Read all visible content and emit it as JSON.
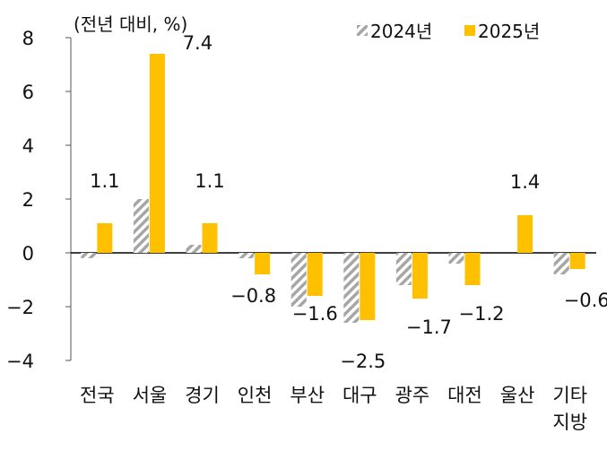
{
  "chart_data": {
    "type": "bar",
    "unit_label": "(전년 대비, %)",
    "categories": [
      "전국",
      "서울",
      "경기",
      "인천",
      "부산",
      "대구",
      "광주",
      "대전",
      "울산",
      "기타\n지방"
    ],
    "series": [
      {
        "name": "2024년",
        "values": [
          -0.2,
          2.0,
          0.3,
          -0.2,
          -2.0,
          -2.6,
          -1.2,
          -0.4,
          0.0,
          -0.8
        ],
        "color": "#a6a6a6",
        "pattern": "diagonal-hatch"
      },
      {
        "name": "2025년",
        "values": [
          1.1,
          7.4,
          1.1,
          -0.8,
          -1.6,
          -2.5,
          -1.7,
          -1.2,
          1.4,
          -0.6
        ],
        "color": "#ffc000"
      }
    ],
    "data_labels": [
      "1.1",
      "7.4",
      "1.1",
      "-0.8",
      "-1.6",
      "-2.5",
      "-1.7",
      "-1.2",
      "1.4",
      "-0.6"
    ],
    "ylim": [
      -4,
      8
    ],
    "yticks": [
      "8",
      "6",
      "4",
      "2",
      "0",
      "-2",
      "-4"
    ],
    "grid": false,
    "legend_position": "top-right"
  }
}
